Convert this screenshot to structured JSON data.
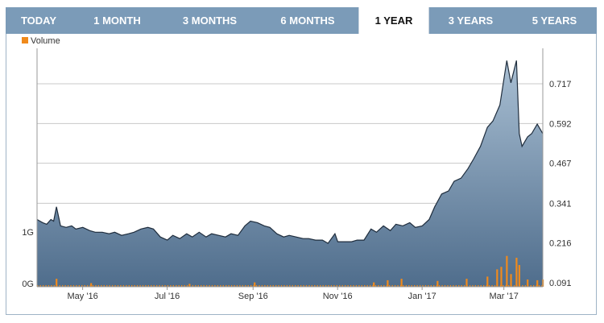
{
  "tabs": [
    {
      "label": "TODAY",
      "active": false
    },
    {
      "label": "1 MONTH",
      "active": false
    },
    {
      "label": "3 MONTHS",
      "active": false
    },
    {
      "label": "6 MONTHS",
      "active": false
    },
    {
      "label": "1 YEAR",
      "active": true
    },
    {
      "label": "3 YEARS",
      "active": false
    },
    {
      "label": "5 YEARS",
      "active": false
    }
  ],
  "colors": {
    "tab_bar": "#7b9bb8",
    "price_line": "#1f2d3d",
    "price_fill_top": "#a9bfd3",
    "price_fill_bottom": "#4f6d8c",
    "volume": "#f08a1c",
    "grid": "#c8c8c8"
  },
  "chart_data": {
    "type": "area",
    "legend": [
      {
        "name": "Volume",
        "color": "#f08a1c"
      }
    ],
    "x_tick_labels": [
      "May '16",
      "Jul '16",
      "Sep '16",
      "Nov '16",
      "Jan '17",
      "Mar '17"
    ],
    "x_range": [
      "2016-04-01",
      "2017-04-01"
    ],
    "price_axis": {
      "ticks": [
        0.091,
        0.216,
        0.341,
        0.467,
        0.592,
        0.717
      ],
      "side": "right"
    },
    "volume_axis": {
      "ticks": [
        "0G",
        "1G"
      ],
      "side": "left"
    },
    "price_series": [
      [
        "2016-04-01",
        0.29
      ],
      [
        "2016-04-05",
        0.28
      ],
      [
        "2016-04-08",
        0.275
      ],
      [
        "2016-04-11",
        0.29
      ],
      [
        "2016-04-13",
        0.285
      ],
      [
        "2016-04-15",
        0.33
      ],
      [
        "2016-04-18",
        0.27
      ],
      [
        "2016-04-22",
        0.265
      ],
      [
        "2016-04-26",
        0.27
      ],
      [
        "2016-04-29",
        0.26
      ],
      [
        "2016-05-04",
        0.265
      ],
      [
        "2016-05-09",
        0.255
      ],
      [
        "2016-05-13",
        0.25
      ],
      [
        "2016-05-18",
        0.25
      ],
      [
        "2016-05-23",
        0.245
      ],
      [
        "2016-05-27",
        0.25
      ],
      [
        "2016-06-01",
        0.24
      ],
      [
        "2016-06-06",
        0.245
      ],
      [
        "2016-06-10",
        0.25
      ],
      [
        "2016-06-15",
        0.26
      ],
      [
        "2016-06-20",
        0.265
      ],
      [
        "2016-06-24",
        0.26
      ],
      [
        "2016-06-29",
        0.235
      ],
      [
        "2016-07-04",
        0.225
      ],
      [
        "2016-07-08",
        0.24
      ],
      [
        "2016-07-13",
        0.23
      ],
      [
        "2016-07-18",
        0.245
      ],
      [
        "2016-07-22",
        0.235
      ],
      [
        "2016-07-27",
        0.25
      ],
      [
        "2016-08-01",
        0.235
      ],
      [
        "2016-08-05",
        0.245
      ],
      [
        "2016-08-10",
        0.24
      ],
      [
        "2016-08-15",
        0.235
      ],
      [
        "2016-08-19",
        0.245
      ],
      [
        "2016-08-24",
        0.24
      ],
      [
        "2016-08-29",
        0.27
      ],
      [
        "2016-09-02",
        0.285
      ],
      [
        "2016-09-07",
        0.28
      ],
      [
        "2016-09-12",
        0.27
      ],
      [
        "2016-09-16",
        0.265
      ],
      [
        "2016-09-21",
        0.245
      ],
      [
        "2016-09-26",
        0.235
      ],
      [
        "2016-09-30",
        0.24
      ],
      [
        "2016-10-05",
        0.235
      ],
      [
        "2016-10-10",
        0.23
      ],
      [
        "2016-10-14",
        0.23
      ],
      [
        "2016-10-19",
        0.225
      ],
      [
        "2016-10-24",
        0.225
      ],
      [
        "2016-10-28",
        0.215
      ],
      [
        "2016-11-02",
        0.245
      ],
      [
        "2016-11-04",
        0.22
      ],
      [
        "2016-11-09",
        0.22
      ],
      [
        "2016-11-14",
        0.22
      ],
      [
        "2016-11-18",
        0.225
      ],
      [
        "2016-11-23",
        0.225
      ],
      [
        "2016-11-28",
        0.26
      ],
      [
        "2016-12-02",
        0.25
      ],
      [
        "2016-12-07",
        0.27
      ],
      [
        "2016-12-12",
        0.255
      ],
      [
        "2016-12-16",
        0.275
      ],
      [
        "2016-12-21",
        0.27
      ],
      [
        "2016-12-26",
        0.28
      ],
      [
        "2016-12-30",
        0.265
      ],
      [
        "2017-01-04",
        0.27
      ],
      [
        "2017-01-09",
        0.29
      ],
      [
        "2017-01-13",
        0.33
      ],
      [
        "2017-01-18",
        0.37
      ],
      [
        "2017-01-23",
        0.38
      ],
      [
        "2017-01-27",
        0.41
      ],
      [
        "2017-02-01",
        0.42
      ],
      [
        "2017-02-06",
        0.45
      ],
      [
        "2017-02-10",
        0.48
      ],
      [
        "2017-02-15",
        0.52
      ],
      [
        "2017-02-20",
        0.58
      ],
      [
        "2017-02-24",
        0.6
      ],
      [
        "2017-03-01",
        0.65
      ],
      [
        "2017-03-06",
        0.79
      ],
      [
        "2017-03-09",
        0.72
      ],
      [
        "2017-03-13",
        0.79
      ],
      [
        "2017-03-15",
        0.56
      ],
      [
        "2017-03-17",
        0.52
      ],
      [
        "2017-03-21",
        0.55
      ],
      [
        "2017-03-24",
        0.56
      ],
      [
        "2017-03-28",
        0.59
      ],
      [
        "2017-04-01",
        0.56
      ]
    ],
    "volume_series": [
      [
        "2016-04-15",
        0.22
      ],
      [
        "2016-05-10",
        0.1
      ],
      [
        "2016-07-20",
        0.08
      ],
      [
        "2016-09-05",
        0.12
      ],
      [
        "2016-11-30",
        0.12
      ],
      [
        "2016-12-10",
        0.18
      ],
      [
        "2016-12-20",
        0.22
      ],
      [
        "2017-01-15",
        0.16
      ],
      [
        "2017-02-05",
        0.22
      ],
      [
        "2017-02-20",
        0.28
      ],
      [
        "2017-02-27",
        0.48
      ],
      [
        "2017-03-02",
        0.55
      ],
      [
        "2017-03-06",
        0.85
      ],
      [
        "2017-03-09",
        0.35
      ],
      [
        "2017-03-13",
        0.8
      ],
      [
        "2017-03-15",
        0.6
      ],
      [
        "2017-03-21",
        0.2
      ],
      [
        "2017-03-28",
        0.18
      ],
      [
        "2017-04-01",
        0.2
      ]
    ]
  }
}
